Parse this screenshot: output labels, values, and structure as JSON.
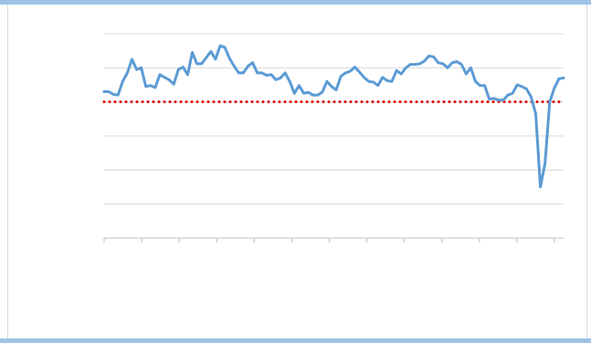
{
  "colors": {
    "frame_accent": "#9dc3e6",
    "series": "#5b9bd5",
    "reference": "#e00000",
    "gridline": "#d9d9d9",
    "axis": "#bfbfbf"
  },
  "chart_data": {
    "type": "line",
    "title": "",
    "xlabel": "",
    "ylabel": "",
    "grid": true,
    "legend": "none",
    "ylim": [
      0,
      6
    ],
    "gridlines": [
      1,
      2,
      3,
      4,
      5,
      6
    ],
    "x_tick_count": 13,
    "reference_line": {
      "style": "dotted",
      "value": 4.0
    },
    "series": [
      {
        "values": [
          4.3,
          4.3,
          4.22,
          4.2,
          4.6,
          4.85,
          5.25,
          4.95,
          5.0,
          4.45,
          4.48,
          4.42,
          4.8,
          4.72,
          4.65,
          4.52,
          4.95,
          5.02,
          4.8,
          5.45,
          5.12,
          5.12,
          5.3,
          5.48,
          5.25,
          5.65,
          5.6,
          5.28,
          5.05,
          4.85,
          4.85,
          5.05,
          5.15,
          4.85,
          4.85,
          4.78,
          4.8,
          4.65,
          4.7,
          4.85,
          4.6,
          4.25,
          4.48,
          4.25,
          4.28,
          4.2,
          4.2,
          4.28,
          4.6,
          4.45,
          4.35,
          4.75,
          4.85,
          4.9,
          5.02,
          4.88,
          4.72,
          4.6,
          4.58,
          4.48,
          4.72,
          4.62,
          4.6,
          4.92,
          4.82,
          5.0,
          5.1,
          5.1,
          5.12,
          5.2,
          5.35,
          5.32,
          5.15,
          5.12,
          5.0,
          5.15,
          5.18,
          5.1,
          4.82,
          5.0,
          4.6,
          4.48,
          4.48,
          4.08,
          4.1,
          4.05,
          4.05,
          4.2,
          4.25,
          4.5,
          4.45,
          4.38,
          4.15,
          3.65,
          1.5,
          2.2,
          4.0,
          4.4,
          4.68,
          4.7
        ]
      }
    ]
  }
}
